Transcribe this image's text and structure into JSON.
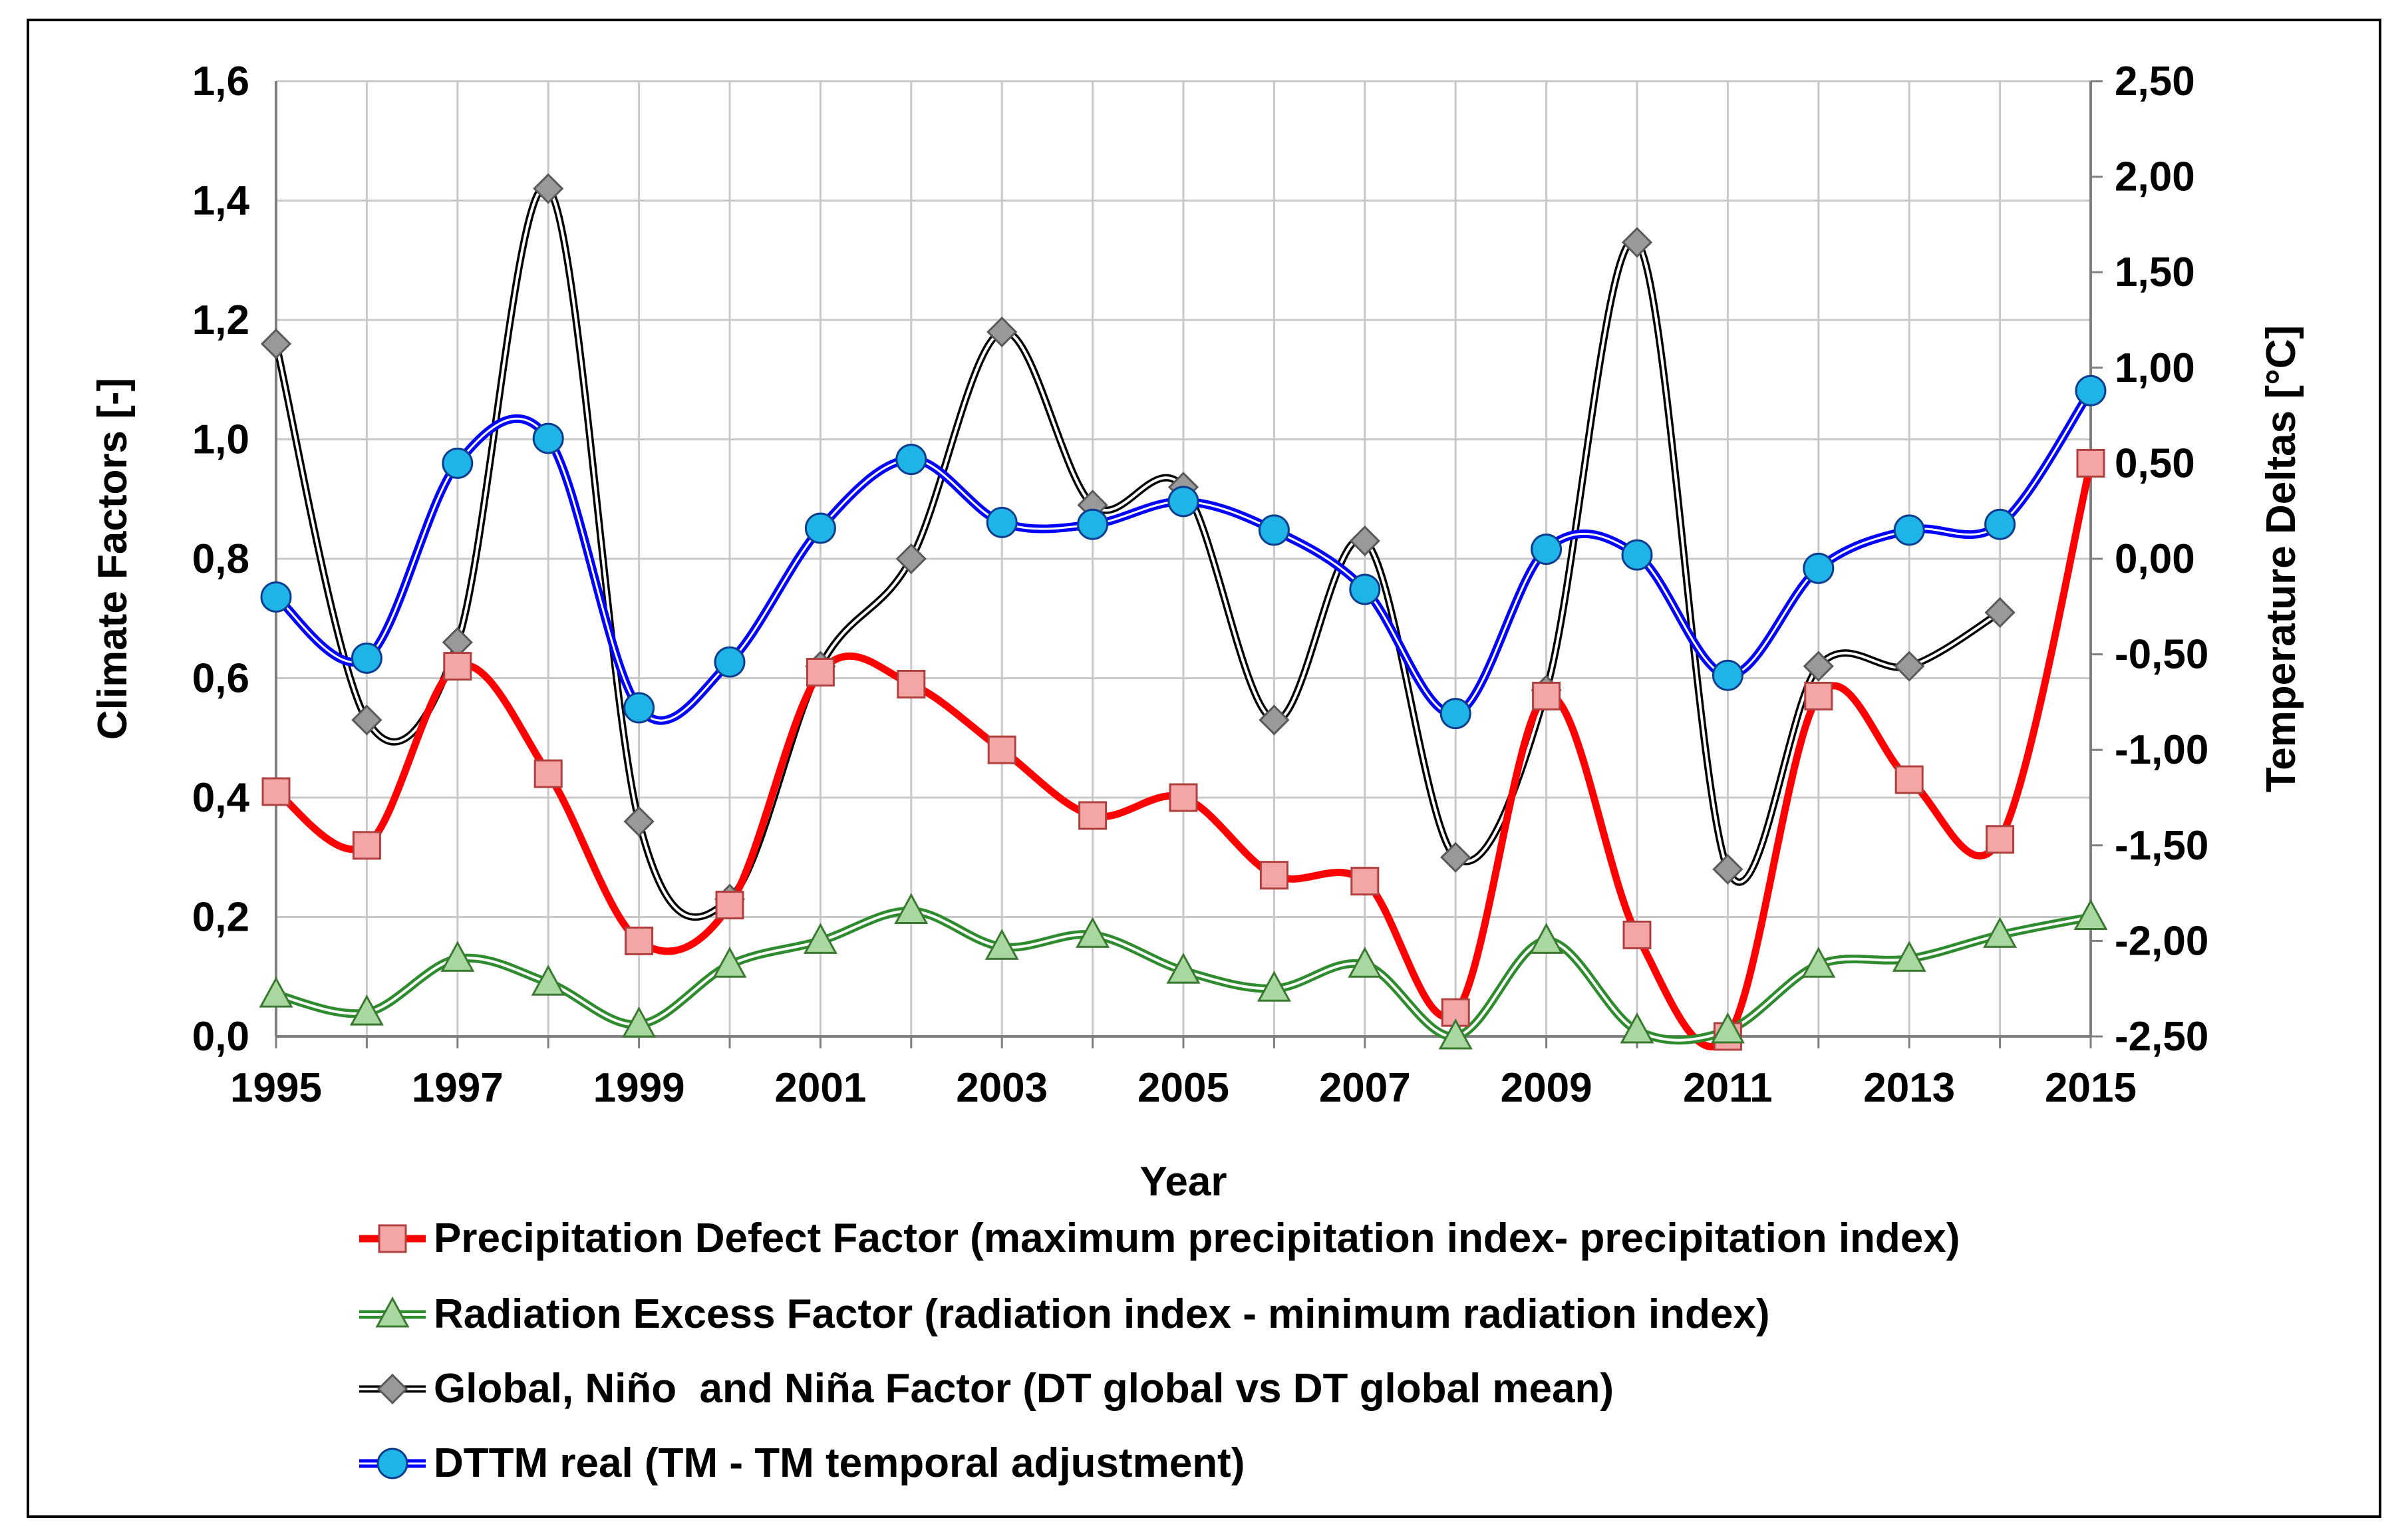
{
  "chart_data": {
    "type": "line",
    "x": [
      1995,
      1996,
      1997,
      1998,
      1999,
      2000,
      2001,
      2002,
      2003,
      2004,
      2005,
      2006,
      2007,
      2008,
      2009,
      2010,
      2011,
      2012,
      2013,
      2014,
      2015
    ],
    "x_tick_labels": [
      "1995",
      "1997",
      "1999",
      "2001",
      "2003",
      "2005",
      "2007",
      "2009",
      "2011",
      "2013",
      "2015"
    ],
    "x_tick_values": [
      1995,
      1997,
      1999,
      2001,
      2003,
      2005,
      2007,
      2009,
      2011,
      2013,
      2015
    ],
    "xlim": [
      1995,
      2015
    ],
    "xlabel": "Year",
    "ylabel_left": "Climate Factors [-]",
    "ylim_left": [
      0,
      1.6
    ],
    "y_left_ticks": [
      0,
      0.2,
      0.4,
      0.6,
      0.8,
      1.0,
      1.2,
      1.4,
      1.6
    ],
    "y_left_tick_labels": [
      "0,0",
      "0,2",
      "0,4",
      "0,6",
      "0,8",
      "1,0",
      "1,2",
      "1,4",
      "1,6"
    ],
    "ylabel_right": "Temperature Deltas [°C]",
    "ylim_right": [
      -2.5,
      2.5
    ],
    "y_right_ticks": [
      -2.5,
      -2.0,
      -1.5,
      -1.0,
      -0.5,
      0.0,
      0.5,
      1.0,
      1.5,
      2.0,
      2.5
    ],
    "y_right_tick_labels": [
      "-2,50",
      "-2,00",
      "-1,50",
      "-1,00",
      "-0,50",
      "0,00",
      "0,50",
      "1,00",
      "1,50",
      "2,00",
      "2,50"
    ],
    "grid": true,
    "legend_position": "bottom",
    "series": [
      {
        "name": "Precipitation Defect Factor (maximum precipitation index- precipitation index)",
        "axis": "left",
        "color": "#ff0000",
        "marker": "square",
        "marker_color": "#f4a6a6",
        "values": [
          0.41,
          0.32,
          0.62,
          0.44,
          0.16,
          0.22,
          0.61,
          0.59,
          0.48,
          0.37,
          0.4,
          0.27,
          0.26,
          0.04,
          0.57,
          0.17,
          0.0,
          0.57,
          0.43,
          0.33,
          0.96
        ]
      },
      {
        "name": "Radiation Excess Factor (radiation index - minimum radiation index)",
        "axis": "left",
        "color": "#2e8b2e",
        "marker": "triangle",
        "marker_color": "#a8d8a0",
        "values": [
          0.07,
          0.04,
          0.13,
          0.09,
          0.02,
          0.12,
          0.16,
          0.21,
          0.15,
          0.17,
          0.11,
          0.08,
          0.12,
          0.0,
          0.16,
          0.01,
          0.01,
          0.12,
          0.13,
          0.17,
          0.2
        ]
      },
      {
        "name": "Global, Niño  and Niña Factor (DT global vs DT global mean)",
        "axis": "left",
        "color": "#000000",
        "marker": "diamond",
        "marker_color": "#999999",
        "values": [
          1.16,
          0.53,
          0.66,
          1.42,
          0.36,
          0.23,
          0.62,
          0.8,
          1.18,
          0.89,
          0.92,
          0.53,
          0.83,
          0.3,
          0.58,
          1.33,
          0.28,
          0.62,
          0.62,
          0.71,
          null
        ]
      },
      {
        "name": "DTTM real (TM - TM temporal adjustment)",
        "axis": "right",
        "color": "#0000ff",
        "marker": "circle",
        "marker_color": "#1eb4e8",
        "values": [
          -0.2,
          -0.52,
          0.5,
          0.63,
          -0.78,
          -0.54,
          0.16,
          0.52,
          0.19,
          0.18,
          0.3,
          0.15,
          -0.16,
          -0.81,
          0.05,
          0.02,
          -0.61,
          -0.05,
          0.15,
          0.18,
          0.88
        ]
      }
    ]
  }
}
